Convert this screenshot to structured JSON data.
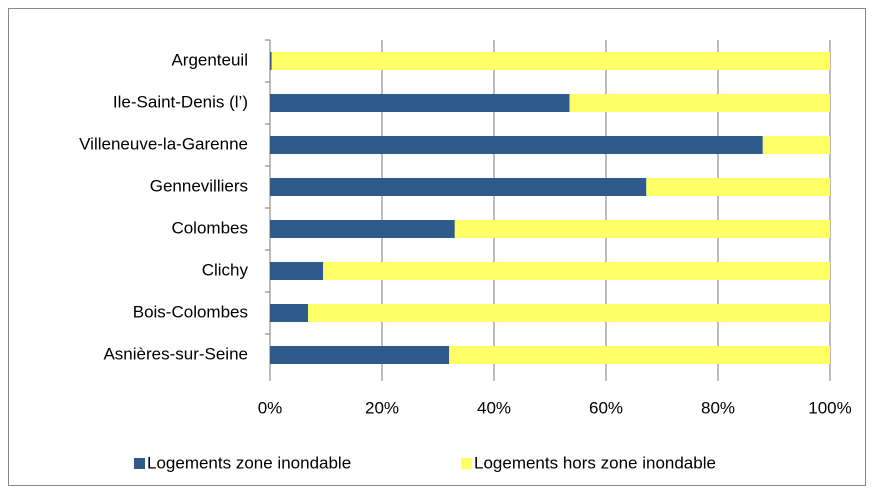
{
  "chart_data": {
    "type": "stacked_barh",
    "categories": [
      "Argenteuil",
      "Ile-Saint-Denis (l’)",
      "Villeneuve-la-Garenne",
      "Gennevilliers",
      "Colombes",
      "Clichy",
      "Bois-Colombes",
      "Asnières-sur-Seine"
    ],
    "series": [
      {
        "name": "Logements zone inondable",
        "color": "#2e5a8c",
        "values": [
          0.3,
          53.5,
          88,
          67.2,
          33,
          9.5,
          6.8,
          32
        ]
      },
      {
        "name": "Logements hors zone inondable",
        "color": "#ffff66",
        "values": [
          99.7,
          46.5,
          12,
          32.8,
          67,
          90.5,
          93.2,
          68
        ]
      }
    ],
    "xlim": [
      0,
      100
    ],
    "xticks": [
      {
        "value": 0,
        "label": "0%"
      },
      {
        "value": 20,
        "label": "20%"
      },
      {
        "value": 40,
        "label": "40%"
      },
      {
        "value": 60,
        "label": "60%"
      },
      {
        "value": 80,
        "label": "80%"
      },
      {
        "value": 100,
        "label": "100%"
      }
    ],
    "grid": true,
    "legend": "bottom"
  }
}
